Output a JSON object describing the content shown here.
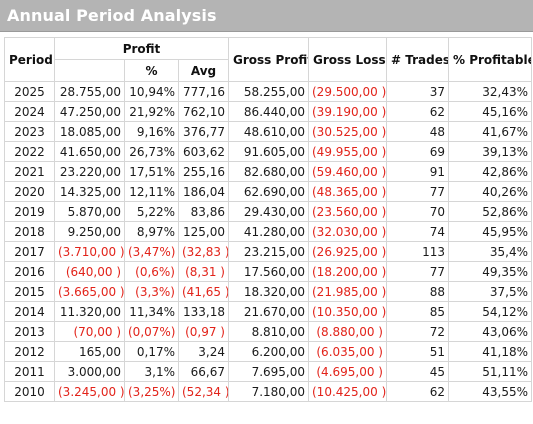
{
  "title": "Annual Period Analysis",
  "headers": {
    "period": "Period",
    "profit": "Profit",
    "pct": "%",
    "avg": "Avg",
    "gross_profit": "Gross Profit",
    "gross_loss": "Gross Loss",
    "trades": "# Trades",
    "pct_profitable": "% Profitable"
  },
  "rows": [
    {
      "period": "2025",
      "profit": "28.755,00",
      "pct": "10,94%",
      "avg": "777,16",
      "gross_profit": "58.255,00",
      "gross_loss": "(29.500,00 )",
      "trades": "37",
      "pct_profitable": "32,43%",
      "profit_neg": false
    },
    {
      "period": "2024",
      "profit": "47.250,00",
      "pct": "21,92%",
      "avg": "762,10",
      "gross_profit": "86.440,00",
      "gross_loss": "(39.190,00 )",
      "trades": "62",
      "pct_profitable": "45,16%",
      "profit_neg": false
    },
    {
      "period": "2023",
      "profit": "18.085,00",
      "pct": "9,16%",
      "avg": "376,77",
      "gross_profit": "48.610,00",
      "gross_loss": "(30.525,00 )",
      "trades": "48",
      "pct_profitable": "41,67%",
      "profit_neg": false
    },
    {
      "period": "2022",
      "profit": "41.650,00",
      "pct": "26,73%",
      "avg": "603,62",
      "gross_profit": "91.605,00",
      "gross_loss": "(49.955,00 )",
      "trades": "69",
      "pct_profitable": "39,13%",
      "profit_neg": false
    },
    {
      "period": "2021",
      "profit": "23.220,00",
      "pct": "17,51%",
      "avg": "255,16",
      "gross_profit": "82.680,00",
      "gross_loss": "(59.460,00 )",
      "trades": "91",
      "pct_profitable": "42,86%",
      "profit_neg": false
    },
    {
      "period": "2020",
      "profit": "14.325,00",
      "pct": "12,11%",
      "avg": "186,04",
      "gross_profit": "62.690,00",
      "gross_loss": "(48.365,00 )",
      "trades": "77",
      "pct_profitable": "40,26%",
      "profit_neg": false
    },
    {
      "period": "2019",
      "profit": "5.870,00",
      "pct": "5,22%",
      "avg": "83,86",
      "gross_profit": "29.430,00",
      "gross_loss": "(23.560,00 )",
      "trades": "70",
      "pct_profitable": "52,86%",
      "profit_neg": false
    },
    {
      "period": "2018",
      "profit": "9.250,00",
      "pct": "8,97%",
      "avg": "125,00",
      "gross_profit": "41.280,00",
      "gross_loss": "(32.030,00 )",
      "trades": "74",
      "pct_profitable": "45,95%",
      "profit_neg": false
    },
    {
      "period": "2017",
      "profit": "(3.710,00 )",
      "pct": "(3,47%)",
      "avg": "(32,83 )",
      "gross_profit": "23.215,00",
      "gross_loss": "(26.925,00 )",
      "trades": "113",
      "pct_profitable": "35,4%",
      "profit_neg": true
    },
    {
      "period": "2016",
      "profit": "(640,00 )",
      "pct": "(0,6%)",
      "avg": "(8,31 )",
      "gross_profit": "17.560,00",
      "gross_loss": "(18.200,00 )",
      "trades": "77",
      "pct_profitable": "49,35%",
      "profit_neg": true
    },
    {
      "period": "2015",
      "profit": "(3.665,00 )",
      "pct": "(3,3%)",
      "avg": "(41,65 )",
      "gross_profit": "18.320,00",
      "gross_loss": "(21.985,00 )",
      "trades": "88",
      "pct_profitable": "37,5%",
      "profit_neg": true
    },
    {
      "period": "2014",
      "profit": "11.320,00",
      "pct": "11,34%",
      "avg": "133,18",
      "gross_profit": "21.670,00",
      "gross_loss": "(10.350,00 )",
      "trades": "85",
      "pct_profitable": "54,12%",
      "profit_neg": false
    },
    {
      "period": "2013",
      "profit": "(70,00 )",
      "pct": "(0,07%)",
      "avg": "(0,97 )",
      "gross_profit": "8.810,00",
      "gross_loss": "(8.880,00 )",
      "trades": "72",
      "pct_profitable": "43,06%",
      "profit_neg": true
    },
    {
      "period": "2012",
      "profit": "165,00",
      "pct": "0,17%",
      "avg": "3,24",
      "gross_profit": "6.200,00",
      "gross_loss": "(6.035,00 )",
      "trades": "51",
      "pct_profitable": "41,18%",
      "profit_neg": false
    },
    {
      "period": "2011",
      "profit": "3.000,00",
      "pct": "3,1%",
      "avg": "66,67",
      "gross_profit": "7.695,00",
      "gross_loss": "(4.695,00 )",
      "trades": "45",
      "pct_profitable": "51,11%",
      "profit_neg": false
    },
    {
      "period": "2010",
      "profit": "(3.245,00 )",
      "pct": "(3,25%)",
      "avg": "(52,34 )",
      "gross_profit": "7.180,00",
      "gross_loss": "(10.425,00 )",
      "trades": "62",
      "pct_profitable": "43,55%",
      "profit_neg": true
    }
  ],
  "colors": {
    "title_bar": "#b4b4b4",
    "title_text": "#ffffff",
    "negative": "#e2231a",
    "grid": "#d6d6d6"
  }
}
